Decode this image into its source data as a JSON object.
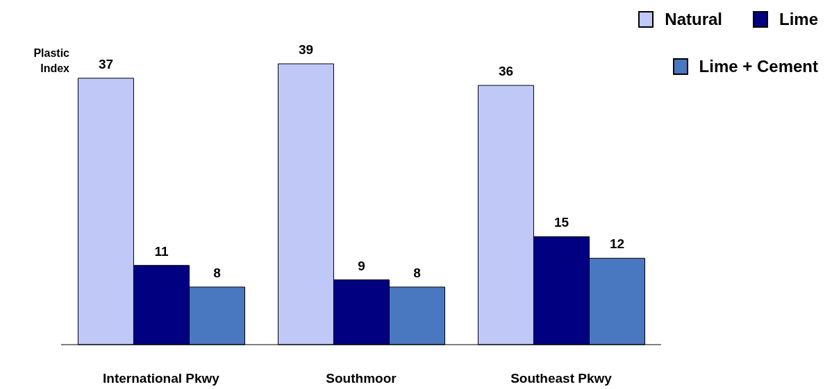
{
  "chart_data": {
    "type": "bar",
    "ylabel": "Plastic Index",
    "categories": [
      "International Pkwy",
      "Southmoor",
      "Southeast Pkwy"
    ],
    "series": [
      {
        "name": "Natural",
        "color": "#c0c8f8",
        "values": [
          37,
          39,
          36
        ]
      },
      {
        "name": "Lime",
        "color": "#000080",
        "values": [
          11,
          9,
          15
        ]
      },
      {
        "name": "Lime + Cement",
        "color": "#4a78c0",
        "values": [
          8,
          8,
          12
        ]
      }
    ],
    "data_labels": true,
    "legend": "top right",
    "grid": false
  }
}
